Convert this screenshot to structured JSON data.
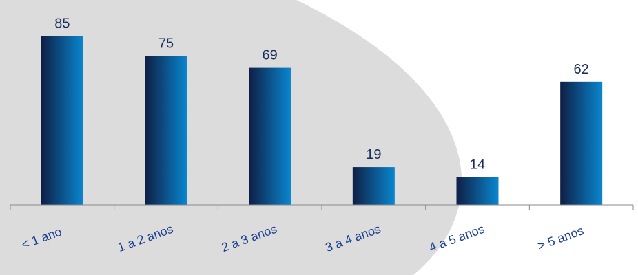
{
  "chart_data": {
    "type": "bar",
    "categories": [
      "< 1 ano",
      "1 a 2 anos",
      "2 a 3 anos",
      "3 a 4 anos",
      "4 a 5 anos",
      "> 5 anos"
    ],
    "values": [
      85,
      75,
      69,
      19,
      14,
      62
    ],
    "title": "",
    "xlabel": "",
    "ylabel": "",
    "ylim": [
      0,
      100
    ],
    "grid": false,
    "legend": "none",
    "colors": {
      "bar_dark": "#0e1f45",
      "bar_light": "#0a86cf",
      "axis": "#8a8a8a",
      "value_text": "#1a2e5c",
      "category_text": "#1b3f8f",
      "background_shape": "#dcdcdc"
    }
  }
}
